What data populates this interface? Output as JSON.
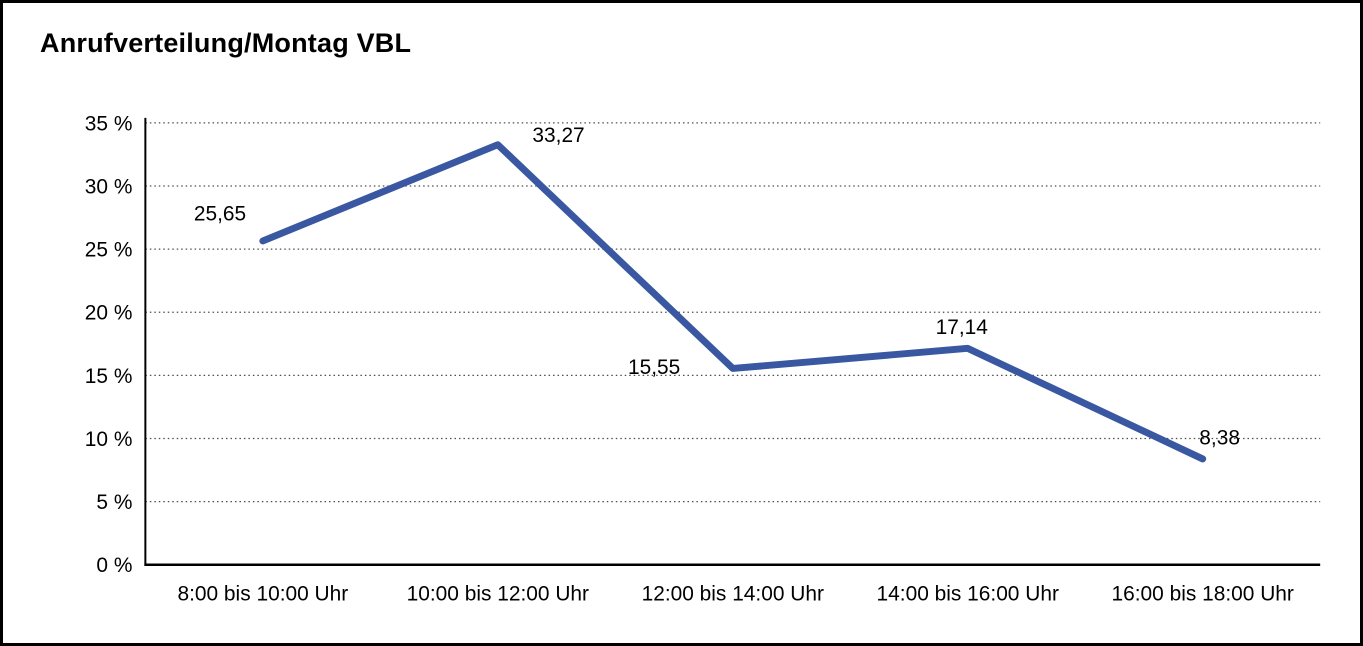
{
  "title": "Anrufverteilung/Montag VBL",
  "chart_data": {
    "type": "line",
    "title": "Anrufverteilung/Montag VBL",
    "categories": [
      "8:00 bis 10:00 Uhr",
      "10:00 bis 12:00 Uhr",
      "12:00 bis 14:00 Uhr",
      "14:00 bis 16:00 Uhr",
      "16:00 bis 18:00 Uhr"
    ],
    "values": [
      25.65,
      33.27,
      15.55,
      17.14,
      8.38
    ],
    "point_labels": [
      "25,65",
      "33,27",
      "15,55",
      "17,14",
      "8,38"
    ],
    "xlabel": "",
    "ylabel": "",
    "ylim": [
      0,
      35
    ],
    "ytick_step": 5,
    "ytick_labels": [
      "0 %",
      "5 %",
      "10 %",
      "15 %",
      "20 %",
      "25 %",
      "30 %",
      "35 %"
    ],
    "grid": "dotted-horizontal",
    "legend": "none",
    "colors": {
      "line": "#3A57A1",
      "axis": "#000000",
      "gridline": "#4d4d4d",
      "text": "#000000",
      "background": "#ffffff",
      "frame_border": "#000000"
    }
  }
}
